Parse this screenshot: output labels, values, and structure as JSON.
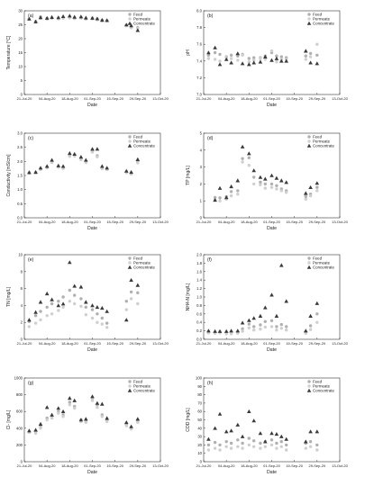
{
  "colors": {
    "feed": "#b0b0b0",
    "permeate": "#cfcfcf",
    "concentrate": "#3a3a3a",
    "axis": "#333333",
    "text": "#222222"
  },
  "legend_labels": [
    "Feed",
    "Permeate",
    "Concentrate"
  ],
  "chart_data": [
    {
      "type": "scatter",
      "panel_label": "(a)",
      "xlabel": "Date",
      "ylabel": "Temperature [°C]",
      "x_ticks": [
        "21-Jul-20",
        "04-Aug-20",
        "18-Aug-20",
        "01-Sep-20",
        "15-Sep-20",
        "29-Sep-20",
        "13-Oct-20"
      ],
      "xlim": [
        "2020-07-21",
        "2020-10-13"
      ],
      "ylim": [
        0,
        30
      ],
      "y_ticks": [
        "0",
        "5",
        "10",
        "15",
        "20",
        "25",
        "30"
      ],
      "legend": [
        "Feed",
        "Permeate",
        "Concentrate"
      ],
      "x": [
        "2020-07-24",
        "2020-07-28",
        "2020-07-31",
        "2020-08-04",
        "2020-08-07",
        "2020-08-11",
        "2020-08-14",
        "2020-08-18",
        "2020-08-21",
        "2020-08-25",
        "2020-08-28",
        "2020-09-01",
        "2020-09-04",
        "2020-09-07",
        "2020-09-10",
        "2020-09-22",
        "2020-09-25",
        "2020-09-29"
      ],
      "series": [
        {
          "name": "Feed",
          "values": [
            27.0,
            26.2,
            27.8,
            27.3,
            27.5,
            27.4,
            27.6,
            27.8,
            27.5,
            27.6,
            27.2,
            27.4,
            27.0,
            26.6,
            26.5,
            24.8,
            24.2,
            24.0
          ]
        },
        {
          "name": "Permeate",
          "values": [
            27.1,
            25.9,
            27.3,
            27.0,
            27.3,
            27.1,
            27.3,
            27.5,
            27.2,
            27.4,
            27.0,
            27.1,
            26.8,
            26.4,
            26.4,
            24.6,
            23.9,
            23.7
          ]
        },
        {
          "name": "Concentrate",
          "values": [
            27.1,
            26.1,
            27.6,
            27.4,
            27.7,
            27.6,
            28.0,
            28.2,
            27.8,
            27.9,
            27.5,
            27.4,
            27.2,
            26.7,
            26.6,
            25.0,
            24.7,
            23.0
          ]
        }
      ]
    },
    {
      "type": "scatter",
      "panel_label": "(b)",
      "xlabel": "Date",
      "ylabel": "pH",
      "x_ticks": [
        "21-Jul-20",
        "04-Aug-20",
        "18-Aug-20",
        "01-Sep-20",
        "15-Sep-20",
        "29-Sep-20",
        "13-Oct-20"
      ],
      "xlim": [
        "2020-07-21",
        "2020-10-13"
      ],
      "ylim": [
        7.0,
        8.0
      ],
      "y_ticks": [
        "7.0",
        "7.2",
        "7.4",
        "7.6",
        "7.8",
        "8.0"
      ],
      "legend": [
        "Feed",
        "Permeate",
        "Concentrate"
      ],
      "x": [
        "2020-07-24",
        "2020-07-28",
        "2020-07-31",
        "2020-08-04",
        "2020-08-07",
        "2020-08-11",
        "2020-08-14",
        "2020-08-18",
        "2020-08-21",
        "2020-08-25",
        "2020-08-28",
        "2020-09-01",
        "2020-09-04",
        "2020-09-07",
        "2020-09-10",
        "2020-09-22",
        "2020-09-25",
        "2020-09-29"
      ],
      "series": [
        {
          "name": "Feed",
          "values": [
            7.47,
            7.5,
            7.48,
            7.45,
            7.47,
            7.46,
            7.48,
            7.43,
            7.44,
            7.44,
            7.46,
            7.5,
            7.46,
            7.45,
            7.44,
            7.46,
            7.49,
            7.47
          ]
        },
        {
          "name": "Permeate",
          "values": [
            7.43,
            7.42,
            7.4,
            7.44,
            7.43,
            7.41,
            7.47,
            7.39,
            7.41,
            7.43,
            7.42,
            7.52,
            7.39,
            7.42,
            7.42,
            7.42,
            7.45,
            7.6
          ]
        },
        {
          "name": "Concentrate",
          "values": [
            7.5,
            7.56,
            7.36,
            7.42,
            7.38,
            7.49,
            7.37,
            7.36,
            7.38,
            7.39,
            7.45,
            7.41,
            7.43,
            7.4,
            7.4,
            7.52,
            7.38,
            7.37
          ]
        }
      ]
    },
    {
      "type": "scatter",
      "panel_label": "(c)",
      "xlabel": "Date",
      "ylabel": "Conductivity [mS/cm]",
      "x_ticks": [
        "21-Jul-20",
        "04-Aug-20",
        "18-Aug-20",
        "01-Sep-20",
        "15-Sep-20",
        "29-Sep-20",
        "13-Oct-20"
      ],
      "xlim": [
        "2020-07-21",
        "2020-10-13"
      ],
      "ylim": [
        0.0,
        3.0
      ],
      "y_ticks": [
        "0.0",
        "0.5",
        "1.0",
        "1.5",
        "2.0",
        "2.5",
        "3.0"
      ],
      "legend": [
        "Feed",
        "Permeate",
        "Concentrate"
      ],
      "x": [
        "2020-07-24",
        "2020-07-28",
        "2020-07-31",
        "2020-08-04",
        "2020-08-07",
        "2020-08-11",
        "2020-08-14",
        "2020-08-18",
        "2020-08-21",
        "2020-08-25",
        "2020-08-28",
        "2020-09-01",
        "2020-09-04",
        "2020-09-07",
        "2020-09-10",
        "2020-09-22",
        "2020-09-25",
        "2020-09-29"
      ],
      "series": [
        {
          "name": "Feed",
          "values": [
            1.6,
            1.61,
            1.74,
            1.8,
            2.0,
            1.82,
            1.78,
            2.22,
            2.23,
            2.1,
            2.0,
            2.37,
            2.2,
            1.78,
            1.74,
            1.63,
            1.59,
            2.0
          ]
        },
        {
          "name": "Permeate",
          "values": [
            1.58,
            1.6,
            1.71,
            1.77,
            1.96,
            1.79,
            1.75,
            2.18,
            2.19,
            2.06,
            1.96,
            2.33,
            2.16,
            1.74,
            1.71,
            1.6,
            1.55,
            1.95
          ]
        },
        {
          "name": "Concentrate",
          "values": [
            1.61,
            1.62,
            1.77,
            1.83,
            2.05,
            1.85,
            1.83,
            2.29,
            2.26,
            2.16,
            2.05,
            2.44,
            2.44,
            1.83,
            1.77,
            1.66,
            1.62,
            2.07
          ]
        }
      ]
    },
    {
      "type": "scatter",
      "panel_label": "(d)",
      "xlabel": "Date",
      "ylabel": "TP [mg/L]",
      "x_ticks": [
        "21-Jul-20",
        "04-Aug-20",
        "18-Aug-20",
        "01-Sep-20",
        "15-Sep-20",
        "29-Sep-20",
        "13-Oct-20"
      ],
      "xlim": [
        "2020-07-21",
        "2020-10-13"
      ],
      "ylim": [
        0,
        5
      ],
      "y_ticks": [
        "0",
        "1",
        "2",
        "3",
        "4",
        "5"
      ],
      "legend": [
        "Feed",
        "Permeate",
        "Concentrate"
      ],
      "x": [
        "2020-07-28",
        "2020-07-31",
        "2020-08-04",
        "2020-08-07",
        "2020-08-11",
        "2020-08-14",
        "2020-08-18",
        "2020-08-21",
        "2020-08-25",
        "2020-08-28",
        "2020-09-01",
        "2020-09-04",
        "2020-09-07",
        "2020-09-10",
        "2020-09-22",
        "2020-09-25",
        "2020-09-29"
      ],
      "series": [
        {
          "name": "Feed",
          "values": [
            1.2,
            1.18,
            1.25,
            1.55,
            1.6,
            3.5,
            3.55,
            2.4,
            2.1,
            2.0,
            2.0,
            1.9,
            1.7,
            1.6,
            1.25,
            1.4,
            1.8
          ]
        },
        {
          "name": "Permeate",
          "values": [
            1.05,
            1.0,
            1.1,
            1.3,
            1.4,
            3.3,
            3.1,
            2.0,
            1.95,
            1.75,
            1.8,
            1.7,
            1.6,
            1.5,
            1.1,
            1.3,
            1.6
          ]
        },
        {
          "name": "Concentrate",
          "values": [
            1.05,
            1.75,
            1.2,
            1.85,
            2.2,
            4.2,
            3.8,
            2.8,
            2.4,
            2.3,
            2.5,
            2.35,
            2.2,
            2.1,
            1.45,
            1.8,
            2.05
          ]
        }
      ]
    },
    {
      "type": "scatter",
      "panel_label": "(e)",
      "xlabel": "Date",
      "ylabel": "TN [mg/L]",
      "x_ticks": [
        "21-Jul-20",
        "04-Aug-20",
        "18-Aug-20",
        "01-Sep-20",
        "15-Sep-20",
        "29-Sep-20",
        "13-Oct-20"
      ],
      "xlim": [
        "2020-07-21",
        "2020-10-13"
      ],
      "ylim": [
        0,
        10
      ],
      "y_ticks": [
        "0",
        "2",
        "4",
        "6",
        "8",
        "10"
      ],
      "legend": [
        "Feed",
        "Permeate",
        "Concentrate"
      ],
      "x": [
        "2020-07-24",
        "2020-07-28",
        "2020-07-31",
        "2020-08-04",
        "2020-08-07",
        "2020-08-11",
        "2020-08-14",
        "2020-08-18",
        "2020-08-21",
        "2020-08-25",
        "2020-08-28",
        "2020-09-01",
        "2020-09-04",
        "2020-09-07",
        "2020-09-10",
        "2020-09-22",
        "2020-09-25",
        "2020-09-29"
      ],
      "series": [
        {
          "name": "Feed",
          "values": [
            2.1,
            2.8,
            3.3,
            3.8,
            4.2,
            4.5,
            5.0,
            5.8,
            5.2,
            4.8,
            3.8,
            3.5,
            3.0,
            2.5,
            1.9,
            4.5,
            5.6,
            5.5
          ]
        },
        {
          "name": "Permeate",
          "values": [
            1.5,
            1.9,
            2.3,
            2.8,
            3.0,
            3.4,
            3.8,
            4.5,
            4.2,
            3.9,
            2.9,
            2.5,
            2.0,
            1.8,
            1.4,
            3.5,
            4.8,
            4.2
          ]
        },
        {
          "name": "Concentrate",
          "values": [
            2.3,
            3.2,
            4.4,
            5.4,
            4.7,
            4.0,
            4.2,
            9.1,
            6.3,
            6.2,
            4.4,
            4.0,
            3.8,
            3.7,
            3.3,
            2.3,
            7.0,
            6.4
          ]
        }
      ]
    },
    {
      "type": "scatter",
      "panel_label": "(f)",
      "xlabel": "Date",
      "ylabel": "NH4-N [mg/L]",
      "x_ticks": [
        "21-Jul-20",
        "04-Aug-20",
        "18-Aug-20",
        "01-Sep-20",
        "15-Sep-20",
        "29-Sep-20",
        "13-Oct-20"
      ],
      "xlim": [
        "2020-07-21",
        "2020-10-13"
      ],
      "ylim": [
        0.0,
        2.0
      ],
      "y_ticks": [
        "0.0",
        "0.2",
        "0.4",
        "0.6",
        "0.8",
        "1.0",
        "1.2",
        "1.4",
        "1.6",
        "1.8",
        "2.0"
      ],
      "legend": [
        "Feed",
        "Permeate",
        "Concentrate"
      ],
      "x": [
        "2020-07-24",
        "2020-07-28",
        "2020-07-31",
        "2020-08-04",
        "2020-08-07",
        "2020-08-11",
        "2020-08-14",
        "2020-08-18",
        "2020-08-21",
        "2020-08-25",
        "2020-08-28",
        "2020-09-01",
        "2020-09-04",
        "2020-09-07",
        "2020-09-10",
        "2020-09-22",
        "2020-09-25",
        "2020-09-29"
      ],
      "series": [
        {
          "name": "Feed",
          "values": [
            0.18,
            0.17,
            0.18,
            0.16,
            0.17,
            0.17,
            0.25,
            0.36,
            0.3,
            0.34,
            0.42,
            0.44,
            0.3,
            0.35,
            0.3,
            0.17,
            0.32,
            0.6
          ]
        },
        {
          "name": "Permeate",
          "values": [
            0.15,
            0.14,
            0.15,
            0.13,
            0.13,
            0.14,
            0.19,
            0.27,
            0.22,
            0.24,
            0.29,
            0.3,
            0.22,
            0.26,
            0.22,
            0.14,
            0.23,
            0.4
          ]
        },
        {
          "name": "Concentrate",
          "values": [
            0.2,
            0.19,
            0.19,
            0.19,
            0.2,
            0.2,
            0.39,
            0.45,
            0.5,
            0.55,
            0.75,
            1.05,
            0.55,
            1.75,
            0.9,
            0.2,
            0.55,
            0.85
          ]
        }
      ]
    },
    {
      "type": "scatter",
      "panel_label": "(g)",
      "xlabel": "Date",
      "ylabel": "Cl- [mg/L]",
      "x_ticks": [
        "21-Jul-20",
        "04-Aug-20",
        "18-Aug-20",
        "01-Sep-20",
        "15-Sep-20",
        "29-Sep-20",
        "13-Oct-20"
      ],
      "xlim": [
        "2020-07-21",
        "2020-10-13"
      ],
      "ylim": [
        0,
        1000
      ],
      "y_ticks": [
        "0",
        "200",
        "400",
        "600",
        "800",
        "1000"
      ],
      "legend": [
        "Feed",
        "Permeate",
        "Concentrate"
      ],
      "x": [
        "2020-07-24",
        "2020-07-28",
        "2020-07-31",
        "2020-08-04",
        "2020-08-07",
        "2020-08-11",
        "2020-08-14",
        "2020-08-18",
        "2020-08-21",
        "2020-08-25",
        "2020-08-28",
        "2020-09-01",
        "2020-09-04",
        "2020-09-07",
        "2020-09-10",
        "2020-09-22",
        "2020-09-25",
        "2020-09-29"
      ],
      "series": [
        {
          "name": "Feed",
          "values": [
            360,
            360,
            420,
            520,
            540,
            600,
            560,
            710,
            660,
            500,
            490,
            760,
            680,
            560,
            500,
            450,
            410,
            490
          ]
        },
        {
          "name": "Permeate",
          "values": [
            350,
            340,
            400,
            500,
            520,
            580,
            540,
            680,
            640,
            480,
            470,
            730,
            650,
            540,
            480,
            430,
            390,
            470
          ]
        },
        {
          "name": "Concentrate",
          "values": [
            370,
            380,
            450,
            650,
            560,
            640,
            600,
            760,
            730,
            500,
            510,
            780,
            700,
            690,
            520,
            470,
            420,
            510
          ]
        }
      ]
    },
    {
      "type": "scatter",
      "panel_label": "(h)",
      "xlabel": "Date",
      "ylabel": "COD [mg/L]",
      "x_ticks": [
        "21-Jul-20",
        "04-Aug-20",
        "18-Aug-20",
        "01-Sep-20",
        "15-Sep-20",
        "29-Sep-20",
        "13-Oct-20"
      ],
      "xlim": [
        "2020-07-21",
        "2020-10-13"
      ],
      "ylim": [
        0,
        100
      ],
      "y_ticks": [
        "0",
        "10",
        "20",
        "30",
        "40",
        "50",
        "60",
        "70",
        "80",
        "90",
        "100"
      ],
      "legend": [
        "Feed",
        "Permeate",
        "Concentrate"
      ],
      "x": [
        "2020-07-24",
        "2020-07-28",
        "2020-07-31",
        "2020-08-04",
        "2020-08-07",
        "2020-08-11",
        "2020-08-14",
        "2020-08-18",
        "2020-08-21",
        "2020-08-25",
        "2020-08-28",
        "2020-09-01",
        "2020-09-04",
        "2020-09-07",
        "2020-09-10",
        "2020-09-22",
        "2020-09-25",
        "2020-09-29"
      ],
      "series": [
        {
          "name": "Feed",
          "values": [
            20,
            23,
            20,
            24,
            22,
            26,
            22,
            28,
            25,
            22,
            24,
            26,
            22,
            24,
            20,
            22,
            24,
            20
          ]
        },
        {
          "name": "Permeate",
          "values": [
            14,
            16,
            14,
            18,
            16,
            18,
            16,
            20,
            18,
            16,
            18,
            20,
            16,
            18,
            14,
            16,
            18,
            14
          ]
        },
        {
          "name": "Concentrate",
          "values": [
            27,
            40,
            57,
            36,
            37,
            44,
            30,
            60,
            49,
            34,
            24,
            34,
            33,
            30,
            27,
            24,
            36,
            36
          ]
        }
      ]
    }
  ]
}
